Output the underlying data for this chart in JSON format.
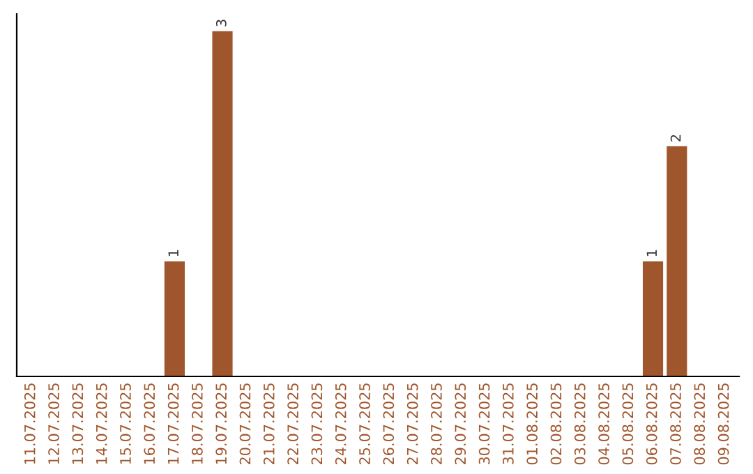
{
  "chart_data": {
    "type": "bar",
    "categories": [
      "11.07.2025",
      "12.07.2025",
      "13.07.2025",
      "14.07.2025",
      "15.07.2025",
      "16.07.2025",
      "17.07.2025",
      "18.07.2025",
      "19.07.2025",
      "20.07.2025",
      "21.07.2025",
      "22.07.2025",
      "23.07.2025",
      "24.07.2025",
      "25.07.2025",
      "26.07.2025",
      "27.07.2025",
      "28.07.2025",
      "29.07.2025",
      "30.07.2025",
      "31.07.2025",
      "01.08.2025",
      "02.08.2025",
      "03.08.2025",
      "04.08.2025",
      "05.08.2025",
      "06.08.2025",
      "07.08.2025",
      "08.08.2025",
      "09.08.2025"
    ],
    "values": [
      0,
      0,
      0,
      0,
      0,
      0,
      1,
      0,
      3,
      0,
      0,
      0,
      0,
      0,
      0,
      0,
      0,
      0,
      0,
      0,
      0,
      0,
      0,
      0,
      0,
      0,
      1,
      2,
      0,
      0
    ],
    "value_labels": [
      null,
      null,
      null,
      null,
      null,
      null,
      "1",
      null,
      "3",
      null,
      null,
      null,
      null,
      null,
      null,
      null,
      null,
      null,
      null,
      null,
      null,
      null,
      null,
      null,
      null,
      null,
      "1",
      "2",
      null,
      null
    ],
    "color": "#a0562c",
    "tick_labels": "x",
    "grid": false
  }
}
